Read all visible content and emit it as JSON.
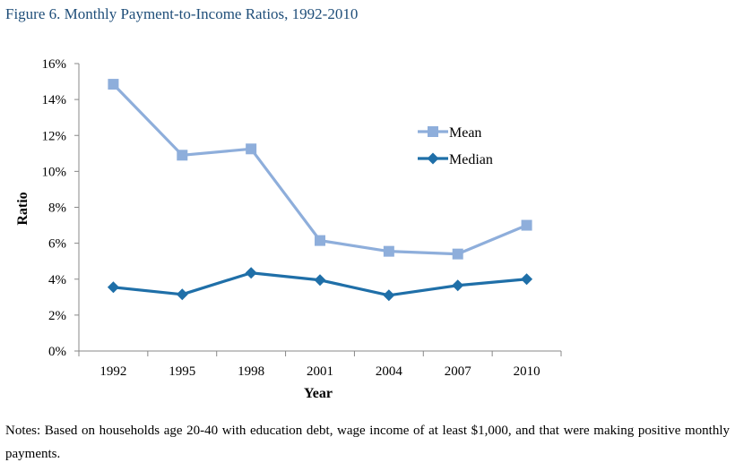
{
  "figure_title": "Figure 6. Monthly Payment-to-Income Ratios, 1992-2010",
  "notes": "Notes: Based on households age 20-40 with education debt, wage income of at least $1,000, and that were making positive monthly payments.",
  "colors": {
    "mean": "#8eaedb",
    "median": "#1f6fa8",
    "title": "#1f4e79",
    "axis": "#888888"
  },
  "chart_data": {
    "type": "line",
    "x": [
      "1992",
      "1995",
      "1998",
      "2001",
      "2004",
      "2007",
      "2010"
    ],
    "xlabel": "Year",
    "ylabel": "Ratio",
    "ylim": [
      0,
      16
    ],
    "yticks": [
      "0%",
      "2%",
      "4%",
      "6%",
      "8%",
      "10%",
      "12%",
      "14%",
      "16%"
    ],
    "grid": false,
    "legend_position": "right",
    "series": [
      {
        "name": "Mean",
        "marker": "square",
        "values": [
          14.85,
          10.9,
          11.25,
          6.15,
          5.55,
          5.4,
          7.0
        ]
      },
      {
        "name": "Median",
        "marker": "diamond",
        "values": [
          3.55,
          3.15,
          4.35,
          3.95,
          3.1,
          3.65,
          4.0
        ]
      }
    ]
  }
}
